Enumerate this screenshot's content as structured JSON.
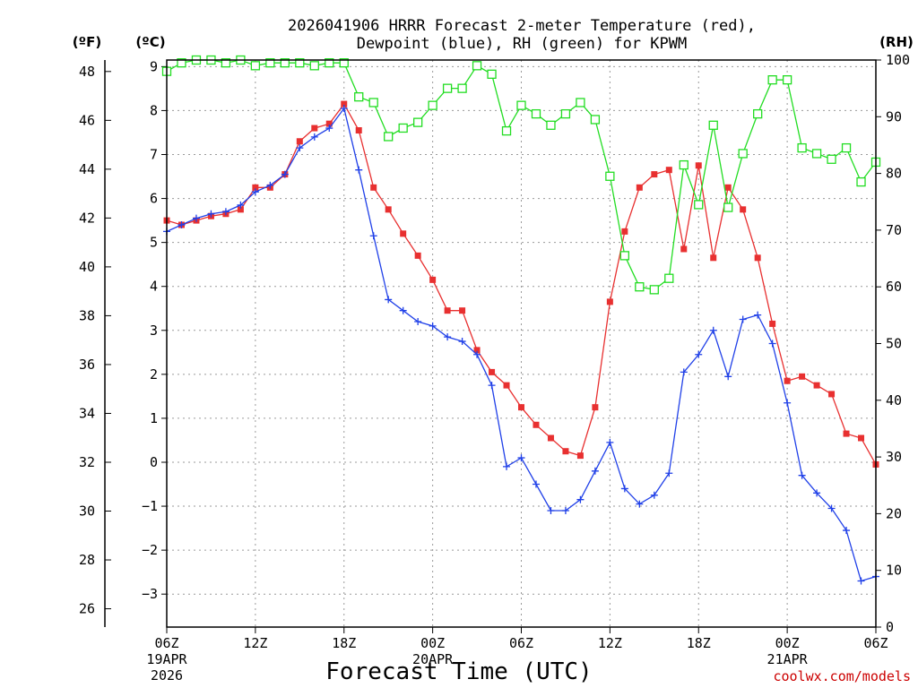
{
  "chart_data": {
    "type": "line",
    "title_line1": "2026041906 HRRR Forecast 2-meter Temperature (red),",
    "title_line2": "Dewpoint (blue), RH (green) for KPWM",
    "unit_f": "(ºF)",
    "unit_c": "(ºC)",
    "unit_rh": "(RH)",
    "xlabel": "Forecast Time (UTC)",
    "credit": "coolwx.com/models",
    "y_c_range": [
      -3.75,
      9.15
    ],
    "y_rh_range": [
      0,
      100
    ],
    "x_hours_range": [
      0,
      48
    ],
    "celsius_ticks": [
      "9",
      "8",
      "7",
      "6",
      "5",
      "4",
      "3",
      "2",
      "1",
      "0",
      "−1",
      "−2",
      "−3"
    ],
    "fahrenheit_ticks": [
      "48",
      "46",
      "44",
      "42",
      "40",
      "38",
      "36",
      "34",
      "32",
      "30",
      "28",
      "26"
    ],
    "rh_ticks": [
      "100",
      "90",
      "80",
      "70",
      "60",
      "50",
      "40",
      "30",
      "20",
      "10",
      "0"
    ],
    "x_ticks": [
      {
        "hour": 0,
        "label": "06Z",
        "date": "19APR",
        "year": "2026"
      },
      {
        "hour": 6,
        "label": "12Z"
      },
      {
        "hour": 12,
        "label": "18Z"
      },
      {
        "hour": 18,
        "label": "00Z",
        "date": "20APR"
      },
      {
        "hour": 24,
        "label": "06Z"
      },
      {
        "hour": 30,
        "label": "12Z"
      },
      {
        "hour": 36,
        "label": "18Z"
      },
      {
        "hour": 42,
        "label": "00Z",
        "date": "21APR"
      },
      {
        "hour": 48,
        "label": "06Z"
      }
    ],
    "series": [
      {
        "name": "Temperature",
        "color": "#e83030",
        "marker": "filled-square",
        "axis": "celsius",
        "values": [
          5.5,
          5.4,
          5.5,
          5.6,
          5.65,
          5.75,
          6.25,
          6.25,
          6.55,
          7.3,
          7.6,
          7.7,
          8.15,
          7.55,
          6.25,
          5.75,
          5.2,
          4.7,
          4.15,
          3.45,
          3.45,
          2.55,
          2.05,
          1.75,
          1.25,
          0.85,
          0.55,
          0.25,
          0.15,
          1.25,
          3.65,
          5.25,
          6.25,
          6.55,
          6.65,
          4.85,
          6.75,
          4.65,
          6.25,
          5.75,
          4.65,
          3.15,
          1.85,
          1.95,
          1.75,
          1.55,
          0.65,
          0.55,
          -0.05
        ]
      },
      {
        "name": "Dewpoint",
        "color": "#2040e8",
        "marker": "plus",
        "axis": "celsius",
        "values": [
          5.25,
          5.4,
          5.55,
          5.65,
          5.7,
          5.85,
          6.15,
          6.3,
          6.55,
          7.15,
          7.4,
          7.6,
          8.05,
          6.65,
          5.15,
          3.7,
          3.45,
          3.2,
          3.1,
          2.85,
          2.75,
          2.45,
          1.75,
          -0.1,
          0.1,
          -0.5,
          -1.1,
          -1.1,
          -0.85,
          -0.2,
          0.45,
          -0.6,
          -0.95,
          -0.75,
          -0.25,
          2.05,
          2.45,
          3.0,
          1.95,
          3.25,
          3.35,
          2.7,
          1.35,
          -0.3,
          -0.7,
          -1.05,
          -1.55,
          -2.7,
          -2.6
        ]
      },
      {
        "name": "RH",
        "color": "#22dd22",
        "marker": "open-square",
        "axis": "rh",
        "values": [
          98,
          99.5,
          100,
          100,
          99.5,
          100,
          99,
          99.5,
          99.5,
          99.5,
          99,
          99.5,
          99.5,
          93.5,
          92.5,
          86.5,
          88,
          89,
          92,
          95,
          95,
          99,
          97.5,
          87.5,
          92,
          90.5,
          88.5,
          90.5,
          92.5,
          89.5,
          79.5,
          65.5,
          60,
          59.5,
          61.5,
          81.5,
          74.5,
          88.5,
          74,
          83.5,
          90.5,
          96.5,
          96.5,
          84.5,
          83.5,
          82.5,
          84.5,
          78.5,
          82
        ]
      }
    ]
  }
}
